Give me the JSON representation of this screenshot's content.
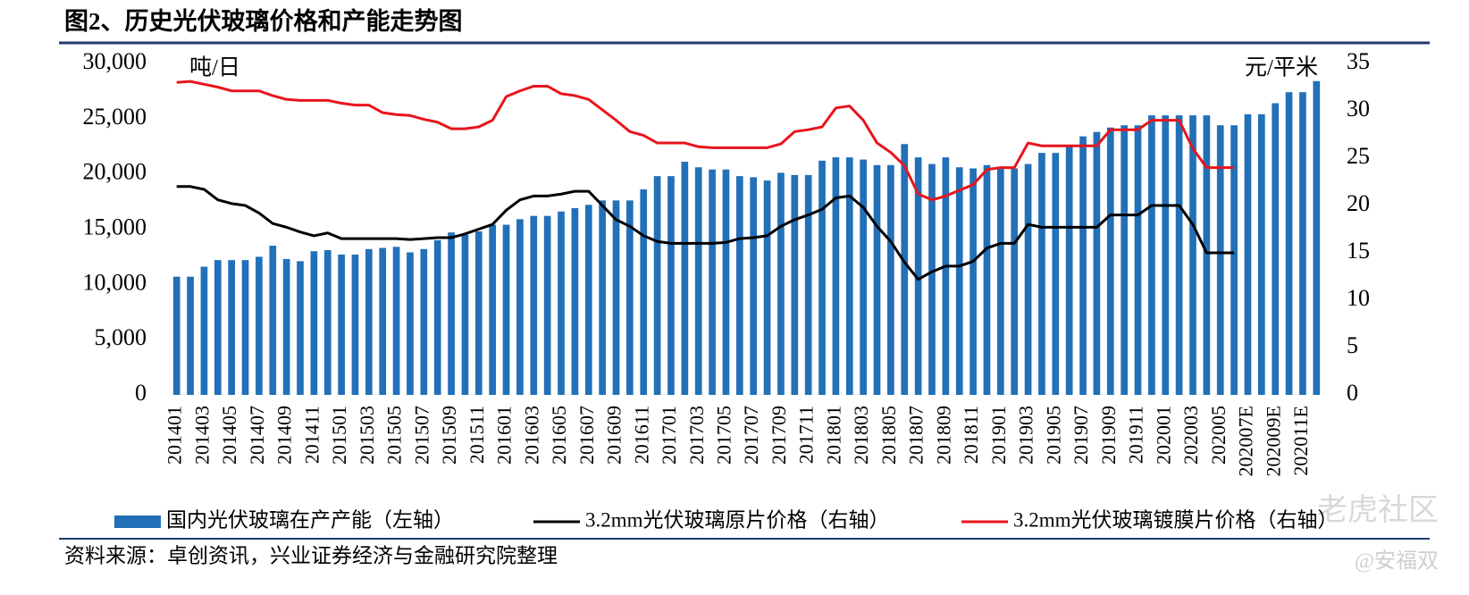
{
  "chart_data": {
    "type": "bar",
    "title": "图2、历史光伏玻璃价格和产能走势图",
    "y_label": "吨/日",
    "y2_label": "元/平米",
    "source": "资料来源：卓创资讯，兴业证券经济与金融研究院整理",
    "watermarks": [
      "老虎社区",
      "@安福双"
    ],
    "categories": [
      "201401",
      null,
      "201403",
      null,
      "201405",
      null,
      "201407",
      null,
      "201409",
      null,
      "201411",
      null,
      "201501",
      null,
      "201503",
      null,
      "201505",
      null,
      "201507",
      null,
      "201509",
      null,
      "201511",
      null,
      "201601",
      null,
      "201603",
      null,
      "201605",
      null,
      "201607",
      null,
      "201609",
      null,
      "201611",
      null,
      "201701",
      null,
      "201703",
      null,
      "201705",
      null,
      "201707",
      null,
      "201709",
      null,
      "201711",
      null,
      "201801",
      null,
      "201803",
      null,
      "201805",
      null,
      "201807",
      null,
      "201809",
      null,
      "201811",
      null,
      "201901",
      null,
      "201903",
      null,
      "201905",
      null,
      "201907",
      null,
      "201909",
      null,
      "201911",
      null,
      "202001",
      null,
      "202003",
      null,
      "202005",
      null,
      "202007E",
      null,
      "202009E",
      null,
      "202011E",
      null
    ],
    "series": [
      {
        "name": "国内光伏玻璃在产产能（左轴）",
        "type": "bar",
        "color": "#2270b8",
        "values": [
          10700,
          10700,
          11600,
          12200,
          12200,
          12200,
          12500,
          13500,
          12300,
          12100,
          13000,
          13100,
          12700,
          12700,
          13200,
          13300,
          13400,
          12900,
          13200,
          14000,
          14700,
          14500,
          14800,
          15400,
          15400,
          15900,
          16200,
          16200,
          16600,
          16900,
          17200,
          17600,
          17600,
          17600,
          18600,
          19800,
          19800,
          21100,
          20600,
          20400,
          20400,
          19800,
          19700,
          19400,
          20100,
          19900,
          19900,
          21200,
          21500,
          21500,
          21300,
          20800,
          20800,
          22700,
          21500,
          20900,
          21500,
          20600,
          20500,
          20800,
          20500,
          20500,
          20900,
          21900,
          21900,
          22500,
          23400,
          23800,
          24200,
          24400,
          24400,
          25300,
          25300,
          25300,
          25300,
          25300,
          24400,
          24400,
          25400,
          25400,
          26400,
          27400,
          27400,
          28400
        ]
      },
      {
        "name": "3.2mm光伏玻璃原片价格（右轴）",
        "type": "line",
        "axis": "y2",
        "color": "#000000",
        "values": [
          22,
          22,
          21.7,
          20.6,
          20.2,
          20,
          19.2,
          18.1,
          17.7,
          17.2,
          16.8,
          17.1,
          16.5,
          16.5,
          16.5,
          16.5,
          16.5,
          16.4,
          16.5,
          16.6,
          16.6,
          17,
          17.5,
          18,
          19.5,
          20.6,
          21,
          21,
          21.2,
          21.5,
          21.5,
          20,
          18.5,
          17.8,
          16.8,
          16.2,
          16,
          16,
          16,
          16,
          16.1,
          16.5,
          16.6,
          16.8,
          17.8,
          18.5,
          19,
          19.6,
          20.8,
          21,
          19.8,
          17.8,
          16.2,
          14,
          12.2,
          13,
          13.6,
          13.6,
          14.1,
          15.5,
          16,
          16,
          18,
          17.7,
          17.7,
          17.7,
          17.7,
          17.7,
          19,
          19,
          19,
          20,
          20,
          20,
          18,
          15,
          15,
          15,
          null,
          null,
          null,
          null,
          null,
          null
        ]
      },
      {
        "name": "3.2mm光伏玻璃镀膜片价格（右轴）",
        "type": "line",
        "axis": "y2",
        "color": "#e8141c",
        "values": [
          33,
          33.1,
          32.8,
          32.5,
          32.1,
          32.1,
          32.1,
          31.6,
          31.2,
          31.1,
          31.1,
          31.1,
          30.8,
          30.6,
          30.6,
          29.8,
          29.6,
          29.5,
          29.1,
          28.8,
          28.1,
          28.1,
          28.3,
          29,
          31.5,
          32.1,
          32.6,
          32.6,
          31.8,
          31.6,
          31.2,
          30.1,
          29,
          27.8,
          27.4,
          26.6,
          26.6,
          26.6,
          26.2,
          26.1,
          26.1,
          26.1,
          26.1,
          26.1,
          26.5,
          27.8,
          28,
          28.3,
          30.3,
          30.5,
          29,
          26.6,
          25.6,
          24.2,
          21.2,
          20.6,
          21,
          21.6,
          22.2,
          23.8,
          24,
          24,
          26.6,
          26.3,
          26.3,
          26.3,
          26.3,
          26.3,
          28,
          28,
          28,
          29,
          29,
          29,
          26,
          24,
          24,
          24,
          null,
          null,
          null,
          null,
          null,
          null
        ]
      }
    ],
    "ylim": [
      0,
      30000
    ],
    "yticks": [
      0,
      {
        "value": 5000,
        "label": "5,000"
      },
      {
        "value": 10000,
        "label": "10,000"
      },
      {
        "value": 15000,
        "label": "15,000"
      },
      {
        "value": 20000,
        "label": "20,000"
      },
      {
        "value": 25000,
        "label": "25,000"
      },
      {
        "value": 30000,
        "label": "30,000"
      }
    ],
    "y2lim": [
      0,
      35
    ],
    "y2ticks": [
      0,
      5,
      10,
      15,
      20,
      25,
      30,
      35
    ],
    "grid": false,
    "legend": "bottom"
  }
}
